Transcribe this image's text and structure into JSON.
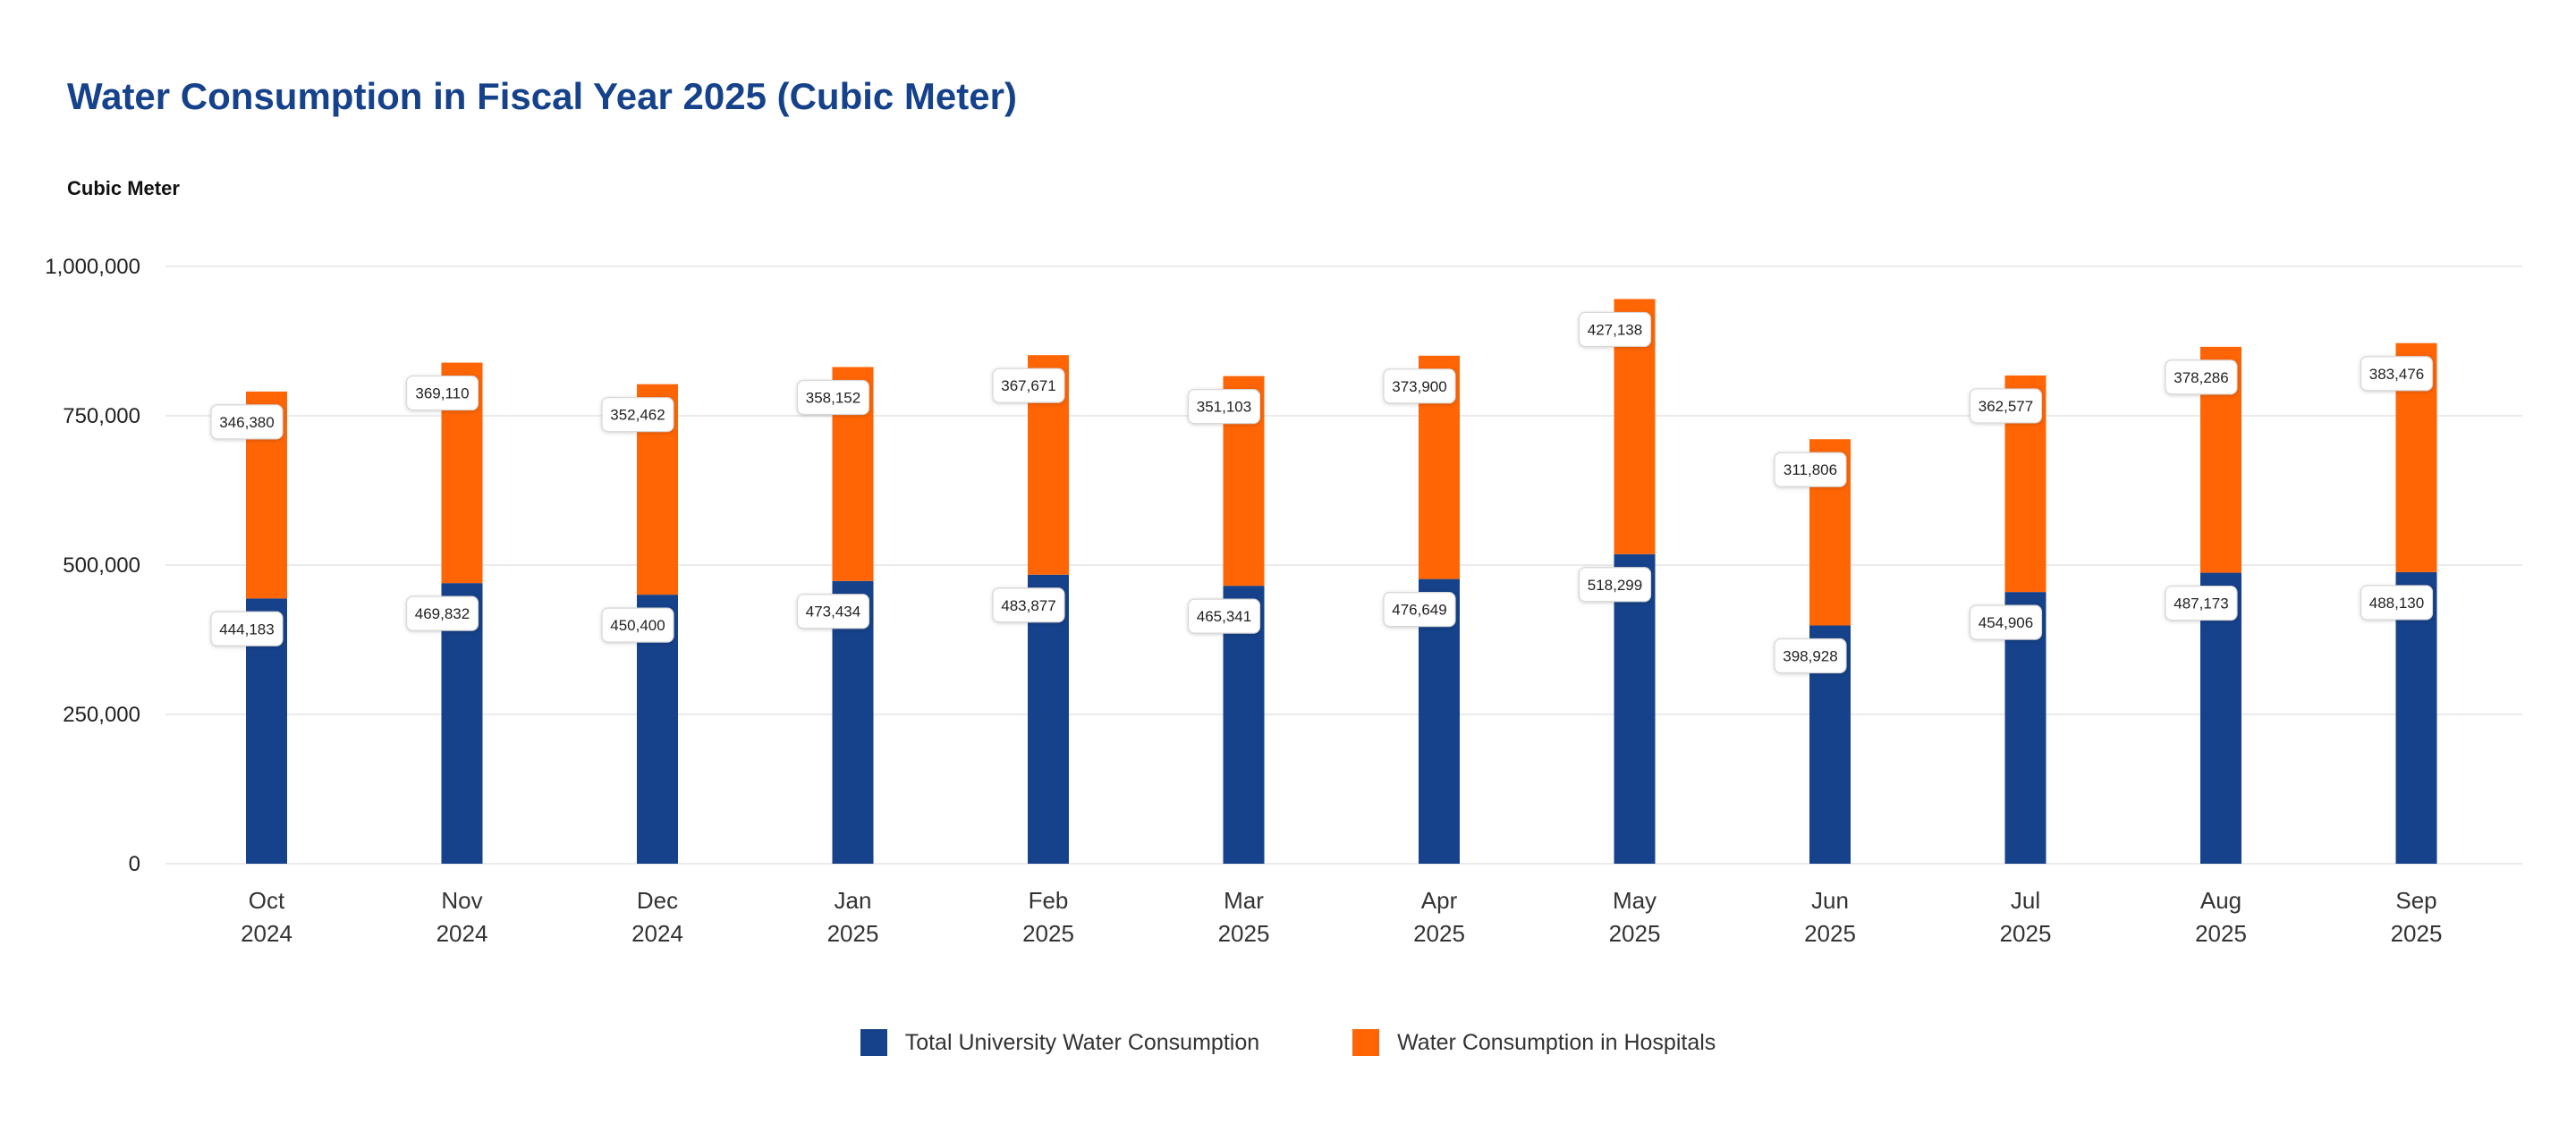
{
  "colors": {
    "title": "#16428b",
    "university": "#16428b",
    "hospitals": "#ff6505",
    "grid": "#ebebeb"
  },
  "header": {
    "title": "Water Consumption in Fiscal Year 2025 (Cubic Meter)",
    "y_unit": "Cubic Meter"
  },
  "legend": {
    "items": [
      {
        "label": "Total University Water Consumption",
        "color": "#16428b"
      },
      {
        "label": "Water Consumption in Hospitals",
        "color": "#ff6505"
      }
    ]
  },
  "chart_data": {
    "type": "bar",
    "stacked": true,
    "title": "Water Consumption in Fiscal Year 2025 (Cubic Meter)",
    "ylabel": "Cubic Meter",
    "xlabel": "",
    "ylim": [
      0,
      1000000
    ],
    "yticks": [
      0,
      250000,
      500000,
      750000,
      1000000
    ],
    "ytick_labels": [
      "0",
      "250,000",
      "500,000",
      "750,000",
      "1,000,000"
    ],
    "grid": true,
    "legend_position": "bottom-center",
    "categories": [
      [
        "Oct",
        "2024"
      ],
      [
        "Nov",
        "2024"
      ],
      [
        "Dec",
        "2024"
      ],
      [
        "Jan",
        "2025"
      ],
      [
        "Feb",
        "2025"
      ],
      [
        "Mar",
        "2025"
      ],
      [
        "Apr",
        "2025"
      ],
      [
        "May",
        "2025"
      ],
      [
        "Jun",
        "2025"
      ],
      [
        "Jul",
        "2025"
      ],
      [
        "Aug",
        "2025"
      ],
      [
        "Sep",
        "2025"
      ]
    ],
    "series": [
      {
        "name": "Total University Water Consumption",
        "color": "#16428b",
        "values": [
          444183,
          469832,
          450400,
          473434,
          483877,
          465341,
          476649,
          518299,
          398928,
          454906,
          487173,
          488130
        ]
      },
      {
        "name": "Water Consumption in Hospitals",
        "color": "#ff6505",
        "values": [
          346380,
          369110,
          352462,
          358152,
          367671,
          351103,
          373900,
          427138,
          311806,
          362577,
          378286,
          383476
        ]
      }
    ]
  }
}
